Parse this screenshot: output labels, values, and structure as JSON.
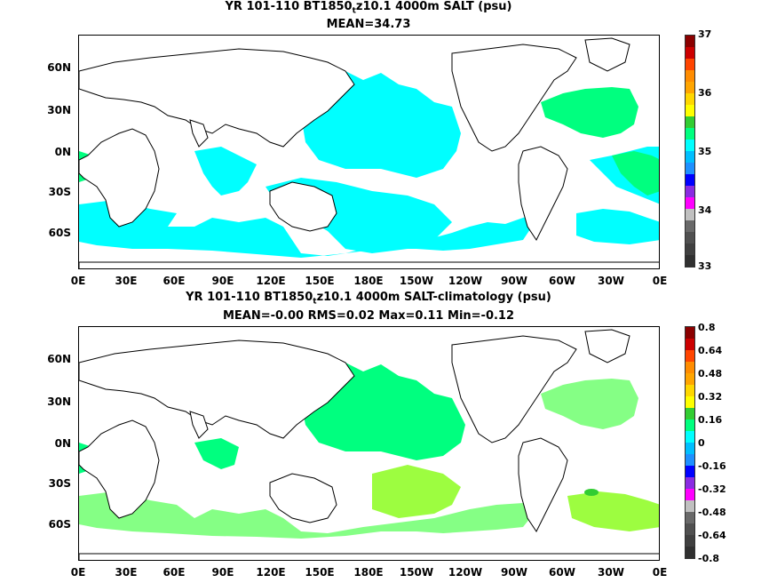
{
  "panels": [
    {
      "title_prefix": "YR 101-110 BT1850",
      "title_sub": "t",
      "title_suffix": "z10.1 4000m SALT (psu)",
      "stats": "MEAN=34.73",
      "lat_labels": [
        "60N",
        "30N",
        "0N",
        "30S",
        "60S"
      ],
      "lon_labels": [
        "0E",
        "30E",
        "60E",
        "90E",
        "120E",
        "150E",
        "180E",
        "150W",
        "120W",
        "90W",
        "60W",
        "30W",
        "0E"
      ],
      "colorbar": {
        "labels": [
          "37",
          "36",
          "35",
          "34",
          "33"
        ],
        "colors": [
          "#8b0000",
          "#cc0000",
          "#ff4500",
          "#ff8c00",
          "#ffa500",
          "#ffd700",
          "#ffff00",
          "#32cd32",
          "#00ff7f",
          "#00ffff",
          "#00bfff",
          "#1e90ff",
          "#0000ff",
          "#8a2be2",
          "#ff00ff",
          "#c0c0c0",
          "#696969",
          "#505050",
          "#404040",
          "#303030"
        ]
      }
    },
    {
      "title_prefix": "YR 101-110 BT1850",
      "title_sub": "t",
      "title_suffix": "z10.1 4000m SALT-climatology (psu)",
      "stats": "MEAN=-0.00   RMS=0.02   Max=0.11   Min=-0.12",
      "lat_labels": [
        "60N",
        "30N",
        "0N",
        "30S",
        "60S"
      ],
      "lon_labels": [
        "0E",
        "30E",
        "60E",
        "90E",
        "120E",
        "150E",
        "180E",
        "150W",
        "120W",
        "90W",
        "60W",
        "30W",
        "0E"
      ],
      "colorbar": {
        "labels": [
          "0.8",
          "0.64",
          "0.48",
          "0.32",
          "0.16",
          "0",
          "-0.16",
          "-0.32",
          "-0.48",
          "-0.64",
          "-0.8"
        ],
        "colors": [
          "#8b0000",
          "#cc0000",
          "#ff4500",
          "#ff8c00",
          "#ffa500",
          "#ffd700",
          "#ffff00",
          "#32cd32",
          "#00ff7f",
          "#00ffff",
          "#00bfff",
          "#1e90ff",
          "#0000ff",
          "#8a2be2",
          "#ff00ff",
          "#c0c0c0",
          "#696969",
          "#505050",
          "#404040",
          "#303030"
        ]
      }
    }
  ],
  "fill_colors": {
    "cyan": "#00ffff",
    "green_light": "#00ff7f",
    "green_pale": "#7cfc00",
    "green_mid": "#66ff66",
    "coast": "#000000"
  }
}
